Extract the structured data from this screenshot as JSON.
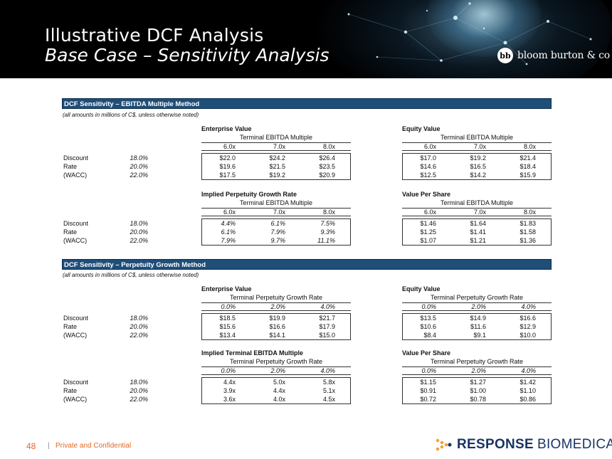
{
  "header": {
    "title": "Illustrative DCF Analysis",
    "subtitle": "Base Case – Sensitivity Analysis",
    "brand_icon": "bb",
    "brand_name": "bloom burton & co"
  },
  "section1": {
    "title": "DCF Sensitivity – EBITDA Multiple Method",
    "note": "(all amounts in millions of C$, unless otherwise noted)",
    "blocks": [
      {
        "title": "Enterprise Value",
        "subtitle": "Terminal EBITDA Multiple",
        "cols": [
          "6.0x",
          "7.0x",
          "8.0x"
        ],
        "rows": [
          [
            "$22.0",
            "$24.2",
            "$26.4"
          ],
          [
            "$19.6",
            "$21.5",
            "$23.5"
          ],
          [
            "$17.5",
            "$19.2",
            "$20.9"
          ]
        ]
      },
      {
        "title": "Equity Value",
        "subtitle": "Terminal EBITDA Multiple",
        "cols": [
          "6.0x",
          "7.0x",
          "8.0x"
        ],
        "rows": [
          [
            "$17.0",
            "$19.2",
            "$21.4"
          ],
          [
            "$14.6",
            "$16.5",
            "$18.4"
          ],
          [
            "$12.5",
            "$14.2",
            "$15.9"
          ]
        ]
      },
      {
        "title": "Implied Perpetuity Growth Rate",
        "subtitle": "Terminal EBITDA Multiple",
        "cols": [
          "6.0x",
          "7.0x",
          "8.0x"
        ],
        "rows": [
          [
            "4.4%",
            "6.1%",
            "7.5%"
          ],
          [
            "6.1%",
            "7.9%",
            "9.3%"
          ],
          [
            "7.9%",
            "9.7%",
            "11.1%"
          ]
        ]
      },
      {
        "title": "Value Per Share",
        "subtitle": "Terminal EBITDA Multiple",
        "cols": [
          "6.0x",
          "7.0x",
          "8.0x"
        ],
        "rows": [
          [
            "$1.46",
            "$1.64",
            "$1.83"
          ],
          [
            "$1.25",
            "$1.41",
            "$1.58"
          ],
          [
            "$1.07",
            "$1.21",
            "$1.36"
          ]
        ]
      }
    ]
  },
  "section2": {
    "title": "DCF Sensitivity – Perpetuity Growth Method",
    "note": "(all amounts in millions of C$, unless otherwise noted)",
    "blocks": [
      {
        "title": "Enterprise Value",
        "subtitle": "Terminal Perpetuity Growth Rate",
        "cols": [
          "0.0%",
          "2.0%",
          "4.0%"
        ],
        "rows": [
          [
            "$18.5",
            "$19.9",
            "$21.7"
          ],
          [
            "$15.6",
            "$16.6",
            "$17.9"
          ],
          [
            "$13.4",
            "$14.1",
            "$15.0"
          ]
        ]
      },
      {
        "title": "Equity Value",
        "subtitle": "Terminal Perpetuity Growth Rate",
        "cols": [
          "0.0%",
          "2.0%",
          "4.0%"
        ],
        "rows": [
          [
            "$13.5",
            "$14.9",
            "$16.6"
          ],
          [
            "$10.6",
            "$11.6",
            "$12.9"
          ],
          [
            "$8.4",
            "$9.1",
            "$10.0"
          ]
        ]
      },
      {
        "title": "Implied Terminal EBITDA Multiple",
        "subtitle": "Terminal Perpetuity Growth Rate",
        "cols": [
          "0.0%",
          "2.0%",
          "4.0%"
        ],
        "rows": [
          [
            "4.4x",
            "5.0x",
            "5.8x"
          ],
          [
            "3.9x",
            "4.4x",
            "5.1x"
          ],
          [
            "3.6x",
            "4.0x",
            "4.5x"
          ]
        ]
      },
      {
        "title": "Value Per Share",
        "subtitle": "Terminal Perpetuity Growth Rate",
        "cols": [
          "0.0%",
          "2.0%",
          "4.0%"
        ],
        "rows": [
          [
            "$1.15",
            "$1.27",
            "$1.42"
          ],
          [
            "$0.91",
            "$1.00",
            "$1.10"
          ],
          [
            "$0.72",
            "$0.78",
            "$0.86"
          ]
        ]
      }
    ]
  },
  "row_labels": [
    "Discount",
    "Rate",
    "(WACC)"
  ],
  "wacc_values": [
    "18.0%",
    "20.0%",
    "22.0%"
  ],
  "footer": {
    "page_number": "48",
    "separator": "|",
    "label": "Private and Confidential",
    "company_bold": "RESPONSE",
    "company_light": "BIOMEDICAL"
  }
}
